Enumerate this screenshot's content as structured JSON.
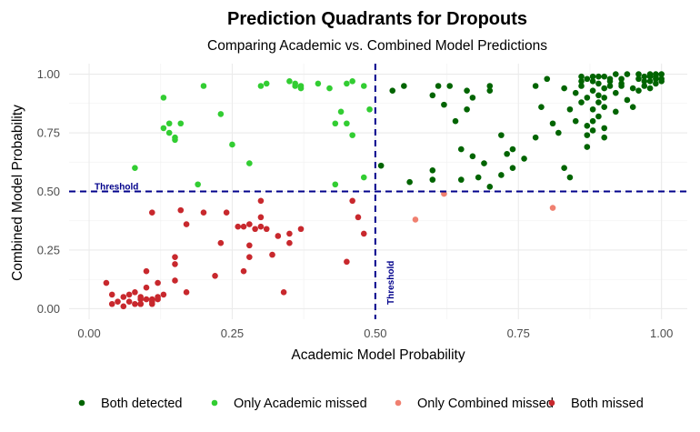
{
  "chart_data": {
    "type": "scatter",
    "title": "Prediction Quadrants for Dropouts",
    "subtitle": "Comparing Academic vs. Combined Model Predictions",
    "xlabel": "Academic Model Probability",
    "ylabel": "Combined Model Probability",
    "xlim": [
      -0.035,
      1.045
    ],
    "ylim": [
      -0.045,
      1.045
    ],
    "x_ticks": [
      "0.00",
      "0.25",
      "0.50",
      "0.75",
      "1.00"
    ],
    "y_ticks": [
      "0.00",
      "0.25",
      "0.50",
      "0.75",
      "1.00"
    ],
    "grid": true,
    "legend_position": "bottom",
    "thresholds": {
      "x": 0.5,
      "y": 0.5,
      "line_color": "#00008b",
      "x_label": "Threshold",
      "y_label": "Threshold"
    },
    "series": [
      {
        "name": "Both detected",
        "color": "#006400",
        "points": [
          [
            0.51,
            0.61
          ],
          [
            0.53,
            0.93
          ],
          [
            0.55,
            0.95
          ],
          [
            0.56,
            0.54
          ],
          [
            0.6,
            0.55
          ],
          [
            0.6,
            0.91
          ],
          [
            0.61,
            0.95
          ],
          [
            0.6,
            0.59
          ],
          [
            0.62,
            0.87
          ],
          [
            0.63,
            0.95
          ],
          [
            0.64,
            0.8
          ],
          [
            0.65,
            0.68
          ],
          [
            0.65,
            0.55
          ],
          [
            0.66,
            0.85
          ],
          [
            0.66,
            0.93
          ],
          [
            0.67,
            0.9
          ],
          [
            0.67,
            0.65
          ],
          [
            0.68,
            0.56
          ],
          [
            0.69,
            0.62
          ],
          [
            0.7,
            0.93
          ],
          [
            0.7,
            0.95
          ],
          [
            0.7,
            0.52
          ],
          [
            0.72,
            0.74
          ],
          [
            0.72,
            0.57
          ],
          [
            0.73,
            0.66
          ],
          [
            0.74,
            0.6
          ],
          [
            0.74,
            0.68
          ],
          [
            0.76,
            0.64
          ],
          [
            0.78,
            0.95
          ],
          [
            0.78,
            0.73
          ],
          [
            0.79,
            0.86
          ],
          [
            0.8,
            0.98
          ],
          [
            0.81,
            0.79
          ],
          [
            0.82,
            0.75
          ],
          [
            0.83,
            0.94
          ],
          [
            0.83,
            0.6
          ],
          [
            0.84,
            0.56
          ],
          [
            0.84,
            0.85
          ],
          [
            0.85,
            0.92
          ],
          [
            0.85,
            0.8
          ],
          [
            0.86,
            0.97
          ],
          [
            0.86,
            0.95
          ],
          [
            0.86,
            0.88
          ],
          [
            0.87,
            0.9
          ],
          [
            0.87,
            0.78
          ],
          [
            0.87,
            0.74
          ],
          [
            0.87,
            0.69
          ],
          [
            0.88,
            0.99
          ],
          [
            0.88,
            0.97
          ],
          [
            0.88,
            0.93
          ],
          [
            0.88,
            0.85
          ],
          [
            0.89,
            0.96
          ],
          [
            0.89,
            0.91
          ],
          [
            0.89,
            0.88
          ],
          [
            0.89,
            0.82
          ],
          [
            0.9,
            0.94
          ],
          [
            0.9,
            0.9
          ],
          [
            0.9,
            0.86
          ],
          [
            0.9,
            0.77
          ],
          [
            0.9,
            0.73
          ],
          [
            0.91,
            0.98
          ],
          [
            0.91,
            0.95
          ],
          [
            0.92,
            0.92
          ],
          [
            0.92,
            0.84
          ],
          [
            0.93,
            0.98
          ],
          [
            0.93,
            0.96
          ],
          [
            0.94,
            0.89
          ],
          [
            0.95,
            0.86
          ],
          [
            0.96,
            0.93
          ],
          [
            0.96,
            0.98
          ],
          [
            0.97,
            0.99
          ],
          [
            0.97,
            0.97
          ],
          [
            0.97,
            0.95
          ],
          [
            0.98,
            0.99
          ],
          [
            0.98,
            0.97
          ],
          [
            0.98,
            0.94
          ],
          [
            0.99,
            0.99
          ],
          [
            0.99,
            0.96
          ],
          [
            0.99,
            0.98
          ],
          [
            1.0,
            1.0
          ],
          [
            1.0,
            0.98
          ],
          [
            1.0,
            0.97
          ],
          [
            0.99,
            1.0
          ],
          [
            0.98,
            1.0
          ],
          [
            0.96,
            1.0
          ],
          [
            0.94,
            1.0
          ],
          [
            0.92,
            1.0
          ],
          [
            0.89,
            0.99
          ],
          [
            0.87,
            0.98
          ],
          [
            0.86,
            0.99
          ],
          [
            0.9,
            0.99
          ],
          [
            0.91,
            0.97
          ],
          [
            0.95,
            0.94
          ],
          [
            0.93,
            0.95
          ],
          [
            0.88,
            0.8
          ],
          [
            0.88,
            0.76
          ]
        ]
      },
      {
        "name": "Only Academic missed",
        "color": "#32cd32",
        "points": [
          [
            0.08,
            0.6
          ],
          [
            0.13,
            0.9
          ],
          [
            0.13,
            0.77
          ],
          [
            0.14,
            0.75
          ],
          [
            0.14,
            0.79
          ],
          [
            0.15,
            0.72
          ],
          [
            0.16,
            0.79
          ],
          [
            0.19,
            0.53
          ],
          [
            0.2,
            0.95
          ],
          [
            0.23,
            0.83
          ],
          [
            0.25,
            0.7
          ],
          [
            0.28,
            0.62
          ],
          [
            0.31,
            0.96
          ],
          [
            0.35,
            0.97
          ],
          [
            0.36,
            0.96
          ],
          [
            0.37,
            0.95
          ],
          [
            0.4,
            0.96
          ],
          [
            0.42,
            0.94
          ],
          [
            0.43,
            0.79
          ],
          [
            0.43,
            0.53
          ],
          [
            0.44,
            0.84
          ],
          [
            0.45,
            0.96
          ],
          [
            0.46,
            0.97
          ],
          [
            0.45,
            0.79
          ],
          [
            0.46,
            0.74
          ],
          [
            0.48,
            0.95
          ],
          [
            0.48,
            0.56
          ],
          [
            0.49,
            0.85
          ],
          [
            0.36,
            0.95
          ],
          [
            0.37,
            0.94
          ],
          [
            0.3,
            0.95
          ],
          [
            0.15,
            0.73
          ]
        ]
      },
      {
        "name": "Only Combined missed",
        "color": "#f08070",
        "points": [
          [
            0.57,
            0.38
          ],
          [
            0.62,
            0.49
          ],
          [
            0.81,
            0.43
          ]
        ]
      },
      {
        "name": "Both missed",
        "color": "#c8282d",
        "points": [
          [
            0.03,
            0.11
          ],
          [
            0.04,
            0.06
          ],
          [
            0.04,
            0.02
          ],
          [
            0.05,
            0.03
          ],
          [
            0.06,
            0.01
          ],
          [
            0.06,
            0.05
          ],
          [
            0.07,
            0.03
          ],
          [
            0.07,
            0.06
          ],
          [
            0.08,
            0.02
          ],
          [
            0.08,
            0.07
          ],
          [
            0.09,
            0.02
          ],
          [
            0.09,
            0.05
          ],
          [
            0.09,
            0.04
          ],
          [
            0.1,
            0.16
          ],
          [
            0.1,
            0.04
          ],
          [
            0.1,
            0.09
          ],
          [
            0.11,
            0.03
          ],
          [
            0.11,
            0.02
          ],
          [
            0.11,
            0.41
          ],
          [
            0.12,
            0.05
          ],
          [
            0.12,
            0.11
          ],
          [
            0.13,
            0.06
          ],
          [
            0.15,
            0.12
          ],
          [
            0.15,
            0.22
          ],
          [
            0.16,
            0.42
          ],
          [
            0.17,
            0.36
          ],
          [
            0.17,
            0.07
          ],
          [
            0.2,
            0.41
          ],
          [
            0.22,
            0.14
          ],
          [
            0.23,
            0.28
          ],
          [
            0.24,
            0.41
          ],
          [
            0.26,
            0.35
          ],
          [
            0.27,
            0.16
          ],
          [
            0.27,
            0.35
          ],
          [
            0.28,
            0.22
          ],
          [
            0.28,
            0.36
          ],
          [
            0.28,
            0.27
          ],
          [
            0.29,
            0.34
          ],
          [
            0.3,
            0.35
          ],
          [
            0.3,
            0.46
          ],
          [
            0.3,
            0.39
          ],
          [
            0.31,
            0.34
          ],
          [
            0.32,
            0.23
          ],
          [
            0.33,
            0.31
          ],
          [
            0.34,
            0.07
          ],
          [
            0.35,
            0.32
          ],
          [
            0.35,
            0.28
          ],
          [
            0.37,
            0.34
          ],
          [
            0.45,
            0.2
          ],
          [
            0.46,
            0.46
          ],
          [
            0.47,
            0.39
          ],
          [
            0.48,
            0.32
          ],
          [
            0.11,
            0.04
          ],
          [
            0.09,
            0.02
          ],
          [
            0.12,
            0.04
          ],
          [
            0.15,
            0.19
          ]
        ]
      }
    ]
  }
}
